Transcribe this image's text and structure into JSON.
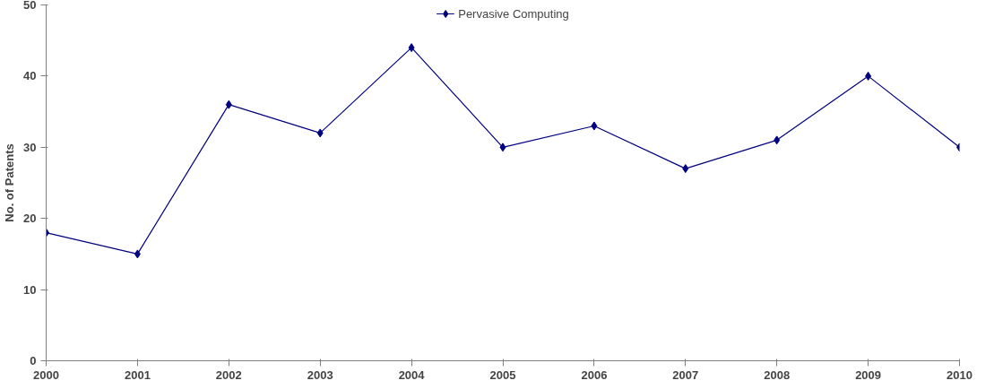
{
  "chart_data": {
    "type": "line",
    "ylabel": "No. of Patents",
    "x": [
      2000,
      2001,
      2002,
      2003,
      2004,
      2005,
      2006,
      2007,
      2008,
      2009,
      2010
    ],
    "series": [
      {
        "name": "Pervasive Computing",
        "color": "#000080",
        "values": [
          18,
          15,
          36,
          32,
          44,
          30,
          33,
          27,
          31,
          40,
          30
        ]
      }
    ],
    "xlim": [
      2000,
      2010
    ],
    "xticks": [
      2000,
      2001,
      2002,
      2003,
      2004,
      2005,
      2006,
      2007,
      2008,
      2009,
      2010
    ],
    "ylim": [
      0,
      50
    ],
    "yticks": [
      0,
      10,
      20,
      30,
      40,
      50
    ],
    "grid": false,
    "legend": "top",
    "marker": "diamond",
    "line_style": "solid"
  }
}
